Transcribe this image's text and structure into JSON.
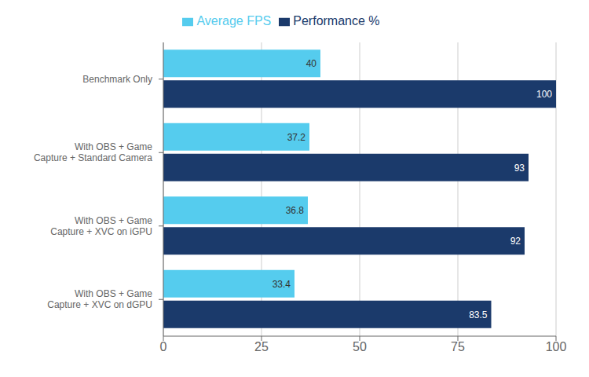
{
  "chart_data": {
    "type": "bar",
    "orientation": "horizontal",
    "categories": [
      "Benchmark Only",
      "With OBS + Game\nCapture + Standard Camera",
      "With OBS + Game\nCapture + XVC on iGPU",
      "With OBS + Game\nCapture + XVC on dGPU"
    ],
    "series": [
      {
        "name": "Average FPS",
        "color": "#55CCEE",
        "values": [
          40,
          37.2,
          36.8,
          33.4
        ]
      },
      {
        "name": "Performance %",
        "color": "#1B3A6B",
        "values": [
          100,
          93,
          92,
          83.5
        ]
      }
    ],
    "xlim": [
      0,
      100
    ],
    "xticks": [
      0,
      25,
      50,
      75,
      100
    ],
    "grid": true,
    "legend": "top",
    "data_labels": true
  }
}
